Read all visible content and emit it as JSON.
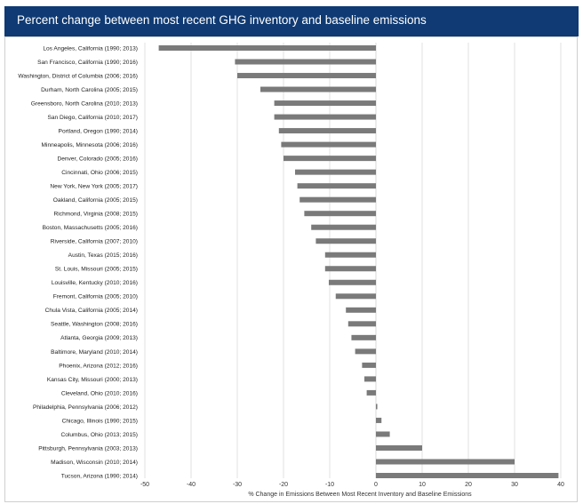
{
  "header": {
    "title": "Percent change between most recent GHG inventory and baseline emissions"
  },
  "colors": {
    "title_bar": "#0f3a73",
    "bar": "#7a7a7a",
    "gridline": "#d9d9d9"
  },
  "chart_data": {
    "type": "bar",
    "orientation": "horizontal",
    "title": "Percent change between most recent GHG inventory and baseline emissions",
    "xlabel": "% Change in Emissions Between Most Recent Inventory and Baseline Emissions",
    "ylabel": "",
    "xlim": [
      -50,
      40
    ],
    "xticks": [
      "-50",
      "-40",
      "-30",
      "-20",
      "-10",
      "0",
      "10",
      "20",
      "30",
      "40"
    ],
    "grid": true,
    "categories": [
      "Los Angeles, California (1990; 2013)",
      "San Francisco, California (1990; 2016)",
      "Washington, District of Columbia (2006; 2016)",
      "Durham, North Carolina (2005; 2015)",
      "Greensboro, North Carolina (2010; 2013)",
      "San Diego, California (2010; 2017)",
      "Portland, Oregon (1990; 2014)",
      "Minneapolis, Minnesota (2006; 2016)",
      "Denver, Colorado (2005; 2016)",
      "Cincinnati, Ohio (2006; 2015)",
      "New York, New York (2005; 2017)",
      "Oakland, California (2005; 2015)",
      "Richmond, Virginia (2008; 2015)",
      "Boston, Massachusetts (2005; 2016)",
      "Riverside, California (2007; 2010)",
      "Austin, Texas (2015; 2016)",
      "St. Louis, Missouri (2005; 2015)",
      "Louisville, Kentucky (2010; 2016)",
      "Fremont, California (2005; 2010)",
      "Chula Vista, California (2005; 2014)",
      "Seattle, Washington (2008; 2016)",
      "Atlanta, Georgia (2009; 2013)",
      "Baltimore, Maryland (2010; 2014)",
      "Phoenix, Arizona (2012; 2016)",
      "Kansas City, Missouri (2000; 2013)",
      "Cleveland, Ohio (2010; 2016)",
      "Philadelphia, Pennsylvania (2006; 2012)",
      "Chicago, Illinois (1990; 2015)",
      "Columbus, Ohio (2013; 2015)",
      "Pittsburgh, Pennsylvania (2003; 2013)",
      "Madison, Wisconsin (2010; 2014)",
      "Tucson, Arizona (1990; 2014)"
    ],
    "values": [
      -47,
      -30.5,
      -30,
      -25,
      -22,
      -22,
      -21,
      -20.5,
      -20,
      -17.5,
      -17,
      -16.5,
      -15.5,
      -14,
      -13,
      -11,
      -11,
      -10.2,
      -8.7,
      -6.5,
      -6,
      -5.3,
      -4.5,
      -3,
      -2.5,
      -2,
      0.3,
      1.2,
      3,
      10,
      30,
      39.5
    ]
  }
}
